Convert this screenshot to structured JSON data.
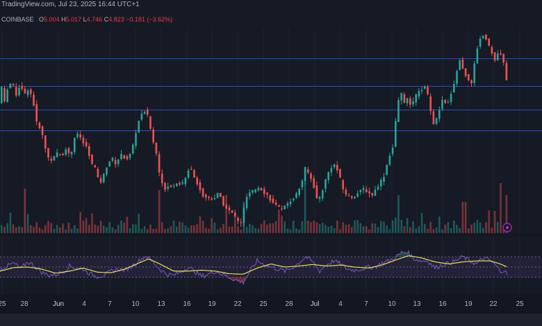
{
  "header": {
    "line1": "TradingView.com, Jul 23, 2025 16:44 UTC+1",
    "exchange": "COINBASE",
    "open_label": "O",
    "open": "5.004",
    "high_label": "H",
    "high": "5.017",
    "low_label": "L",
    "low": "4.746",
    "close_label": "C",
    "close": "4.823",
    "change": "−0.181 (−3.62%)"
  },
  "colors": {
    "up": "#26a69a",
    "down": "#ef5350",
    "rsi": "#7e57c2",
    "rsi_ma": "#e4e442",
    "hline": "#2962ff",
    "background": "#161a25"
  },
  "x_ticks": [
    {
      "label": "25",
      "month": false
    },
    {
      "label": "28",
      "month": false
    },
    {
      "label": "Jun",
      "month": true
    },
    {
      "label": "4",
      "month": false
    },
    {
      "label": "7",
      "month": false
    },
    {
      "label": "10",
      "month": false
    },
    {
      "label": "13",
      "month": false
    },
    {
      "label": "16",
      "month": false
    },
    {
      "label": "19",
      "month": false
    },
    {
      "label": "22",
      "month": false
    },
    {
      "label": "25",
      "month": false
    },
    {
      "label": "28",
      "month": false
    },
    {
      "label": "Jul",
      "month": true
    },
    {
      "label": "4",
      "month": false
    },
    {
      "label": "7",
      "month": false
    },
    {
      "label": "10",
      "month": false
    },
    {
      "label": "13",
      "month": false
    },
    {
      "label": "16",
      "month": false
    },
    {
      "label": "19",
      "month": false
    },
    {
      "label": "22",
      "month": false
    },
    {
      "label": "25",
      "month": false
    }
  ],
  "chart_data": {
    "type": "candlestick",
    "symbol_exchange": "COINBASE",
    "price_unit_note": "",
    "ylim": [
      2.6,
      5.6
    ],
    "horizontal_levels": [
      5.15,
      4.75,
      4.4,
      4.1
    ],
    "price_path": [
      [
        0,
        4.5
      ],
      [
        4,
        4.8
      ],
      [
        8,
        4.45
      ],
      [
        12,
        4.75
      ],
      [
        18,
        4.8
      ],
      [
        24,
        4.62
      ],
      [
        30,
        4.78
      ],
      [
        36,
        4.62
      ],
      [
        42,
        4.72
      ],
      [
        48,
        4.55
      ],
      [
        54,
        4.18
      ],
      [
        58,
        4.15
      ],
      [
        62,
        4.02
      ],
      [
        66,
        3.84
      ],
      [
        72,
        3.65
      ],
      [
        78,
        3.7
      ],
      [
        84,
        3.78
      ],
      [
        90,
        3.72
      ],
      [
        96,
        3.85
      ],
      [
        102,
        3.7
      ],
      [
        108,
        4.0
      ],
      [
        114,
        4.05
      ],
      [
        120,
        3.92
      ],
      [
        126,
        3.85
      ],
      [
        132,
        3.62
      ],
      [
        138,
        3.55
      ],
      [
        144,
        3.3
      ],
      [
        150,
        3.45
      ],
      [
        156,
        3.62
      ],
      [
        162,
        3.7
      ],
      [
        168,
        3.6
      ],
      [
        174,
        3.75
      ],
      [
        180,
        3.7
      ],
      [
        186,
        3.68
      ],
      [
        190,
        3.82
      ],
      [
        194,
        3.95
      ],
      [
        198,
        4.15
      ],
      [
        202,
        4.3
      ],
      [
        208,
        4.4
      ],
      [
        214,
        4.3
      ],
      [
        220,
        3.98
      ],
      [
        226,
        3.75
      ],
      [
        232,
        3.35
      ],
      [
        238,
        3.25
      ],
      [
        244,
        3.3
      ],
      [
        250,
        3.28
      ],
      [
        256,
        3.35
      ],
      [
        262,
        3.3
      ],
      [
        268,
        3.4
      ],
      [
        274,
        3.6
      ],
      [
        280,
        3.42
      ],
      [
        286,
        3.3
      ],
      [
        292,
        3.15
      ],
      [
        298,
        3.12
      ],
      [
        304,
        3.1
      ],
      [
        310,
        3.12
      ],
      [
        316,
        3.2
      ],
      [
        320,
        3.05
      ],
      [
        324,
        3.0
      ],
      [
        328,
        2.95
      ],
      [
        334,
        2.9
      ],
      [
        338,
        2.85
      ],
      [
        342,
        2.8
      ],
      [
        346,
        2.7
      ],
      [
        350,
        2.85
      ],
      [
        354,
        3.1
      ],
      [
        360,
        3.18
      ],
      [
        366,
        3.22
      ],
      [
        370,
        3.25
      ],
      [
        374,
        3.28
      ],
      [
        380,
        3.2
      ],
      [
        386,
        3.15
      ],
      [
        392,
        3.05
      ],
      [
        398,
        3.0
      ],
      [
        404,
        2.95
      ],
      [
        410,
        2.98
      ],
      [
        416,
        3.05
      ],
      [
        422,
        3.1
      ],
      [
        428,
        3.18
      ],
      [
        434,
        3.3
      ],
      [
        440,
        3.55
      ],
      [
        446,
        3.45
      ],
      [
        452,
        3.3
      ],
      [
        458,
        3.05
      ],
      [
        464,
        3.2
      ],
      [
        470,
        3.4
      ],
      [
        476,
        3.55
      ],
      [
        482,
        3.6
      ],
      [
        488,
        3.48
      ],
      [
        494,
        3.25
      ],
      [
        500,
        3.15
      ],
      [
        506,
        3.12
      ],
      [
        512,
        3.15
      ],
      [
        518,
        3.2
      ],
      [
        524,
        3.25
      ],
      [
        530,
        3.2
      ],
      [
        536,
        3.15
      ],
      [
        542,
        3.25
      ],
      [
        548,
        3.35
      ],
      [
        554,
        3.45
      ],
      [
        560,
        3.7
      ],
      [
        566,
        3.85
      ],
      [
        572,
        4.4
      ],
      [
        576,
        4.62
      ],
      [
        580,
        4.65
      ],
      [
        584,
        4.45
      ],
      [
        588,
        4.6
      ],
      [
        592,
        4.42
      ],
      [
        596,
        4.55
      ],
      [
        602,
        4.65
      ],
      [
        608,
        4.7
      ],
      [
        614,
        4.75
      ],
      [
        620,
        4.4
      ],
      [
        626,
        4.15
      ],
      [
        632,
        4.38
      ],
      [
        638,
        4.55
      ],
      [
        644,
        4.45
      ],
      [
        650,
        4.65
      ],
      [
        656,
        4.85
      ],
      [
        662,
        5.15
      ],
      [
        668,
        4.95
      ],
      [
        674,
        4.85
      ],
      [
        680,
        4.8
      ],
      [
        686,
        5.25
      ],
      [
        692,
        5.45
      ],
      [
        698,
        5.5
      ],
      [
        704,
        5.35
      ],
      [
        708,
        5.25
      ],
      [
        712,
        5.1
      ],
      [
        716,
        5.2
      ],
      [
        720,
        5.25
      ],
      [
        724,
        5.12
      ],
      [
        728,
        5.0
      ],
      [
        730,
        4.82
      ]
    ],
    "volume_spikes": [
      [
        33,
        64
      ],
      [
        229,
        62
      ],
      [
        325,
        55
      ],
      [
        349,
        45
      ],
      [
        438,
        73
      ],
      [
        571,
        55
      ],
      [
        667,
        45
      ],
      [
        718,
        72
      ],
      [
        728,
        55
      ]
    ],
    "rsi": {
      "bands": [
        70,
        50,
        30
      ],
      "path": [
        [
          0,
          45
        ],
        [
          10,
          52
        ],
        [
          20,
          57
        ],
        [
          30,
          47
        ],
        [
          40,
          60
        ],
        [
          50,
          52
        ],
        [
          60,
          40
        ],
        [
          70,
          34
        ],
        [
          80,
          35
        ],
        [
          90,
          40
        ],
        [
          100,
          52
        ],
        [
          110,
          48
        ],
        [
          120,
          46
        ],
        [
          130,
          36
        ],
        [
          140,
          32
        ],
        [
          150,
          34
        ],
        [
          160,
          42
        ],
        [
          170,
          46
        ],
        [
          180,
          44
        ],
        [
          190,
          52
        ],
        [
          200,
          62
        ],
        [
          210,
          72
        ],
        [
          220,
          60
        ],
        [
          230,
          46
        ],
        [
          240,
          36
        ],
        [
          250,
          34
        ],
        [
          260,
          40
        ],
        [
          270,
          50
        ],
        [
          280,
          42
        ],
        [
          290,
          32
        ],
        [
          300,
          36
        ],
        [
          310,
          42
        ],
        [
          320,
          36
        ],
        [
          330,
          30
        ],
        [
          340,
          24
        ],
        [
          350,
          20
        ],
        [
          360,
          42
        ],
        [
          370,
          62
        ],
        [
          380,
          55
        ],
        [
          390,
          50
        ],
        [
          400,
          46
        ],
        [
          410,
          42
        ],
        [
          420,
          48
        ],
        [
          430,
          58
        ],
        [
          440,
          70
        ],
        [
          450,
          60
        ],
        [
          460,
          42
        ],
        [
          470,
          55
        ],
        [
          480,
          62
        ],
        [
          490,
          56
        ],
        [
          500,
          46
        ],
        [
          510,
          44
        ],
        [
          520,
          46
        ],
        [
          530,
          50
        ],
        [
          540,
          50
        ],
        [
          550,
          58
        ],
        [
          560,
          62
        ],
        [
          570,
          70
        ],
        [
          578,
          78
        ],
        [
          586,
          80
        ],
        [
          596,
          66
        ],
        [
          606,
          62
        ],
        [
          616,
          62
        ],
        [
          626,
          48
        ],
        [
          636,
          54
        ],
        [
          646,
          58
        ],
        [
          656,
          62
        ],
        [
          666,
          70
        ],
        [
          676,
          62
        ],
        [
          686,
          56
        ],
        [
          696,
          68
        ],
        [
          706,
          62
        ],
        [
          714,
          52
        ],
        [
          720,
          42
        ],
        [
          726,
          44
        ],
        [
          730,
          35
        ]
      ],
      "ma_path": [
        [
          0,
          42
        ],
        [
          20,
          49
        ],
        [
          40,
          50
        ],
        [
          60,
          46
        ],
        [
          80,
          38
        ],
        [
          100,
          42
        ],
        [
          120,
          48
        ],
        [
          140,
          40
        ],
        [
          160,
          39
        ],
        [
          180,
          46
        ],
        [
          200,
          58
        ],
        [
          214,
          66
        ],
        [
          230,
          56
        ],
        [
          250,
          42
        ],
        [
          270,
          42
        ],
        [
          290,
          44
        ],
        [
          310,
          42
        ],
        [
          330,
          37
        ],
        [
          350,
          36
        ],
        [
          370,
          48
        ],
        [
          390,
          56
        ],
        [
          410,
          50
        ],
        [
          430,
          52
        ],
        [
          450,
          55
        ],
        [
          470,
          52
        ],
        [
          490,
          54
        ],
        [
          510,
          50
        ],
        [
          530,
          48
        ],
        [
          550,
          54
        ],
        [
          570,
          64
        ],
        [
          588,
          72
        ],
        [
          606,
          68
        ],
        [
          626,
          60
        ],
        [
          646,
          56
        ],
        [
          666,
          60
        ],
        [
          686,
          62
        ],
        [
          706,
          62
        ],
        [
          720,
          56
        ],
        [
          730,
          50
        ]
      ]
    }
  }
}
